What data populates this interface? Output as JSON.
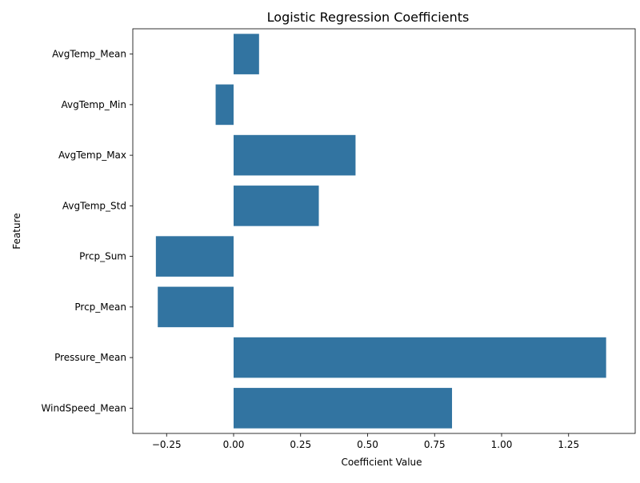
{
  "chart_data": {
    "type": "bar",
    "orientation": "horizontal",
    "title": "Logistic Regression Coefficients",
    "xlabel": "Coefficient Value",
    "ylabel": "Feature",
    "categories": [
      "AvgTemp_Mean",
      "AvgTemp_Min",
      "AvgTemp_Max",
      "AvgTemp_Std",
      "Prcp_Sum",
      "Prcp_Mean",
      "Pressure_Mean",
      "WindSpeed_Mean"
    ],
    "values": [
      0.095,
      -0.067,
      0.455,
      0.318,
      -0.29,
      -0.283,
      1.39,
      0.815
    ],
    "xlim": [
      -0.4,
      1.4
    ],
    "xticks": [
      -0.25,
      0.0,
      0.25,
      0.5,
      0.75,
      1.0,
      1.25
    ],
    "xtick_labels": [
      "−0.25",
      "0.00",
      "0.25",
      "0.50",
      "0.75",
      "1.00",
      "1.25"
    ],
    "bar_color": "#3274a1",
    "grid": false,
    "legend": "none"
  }
}
